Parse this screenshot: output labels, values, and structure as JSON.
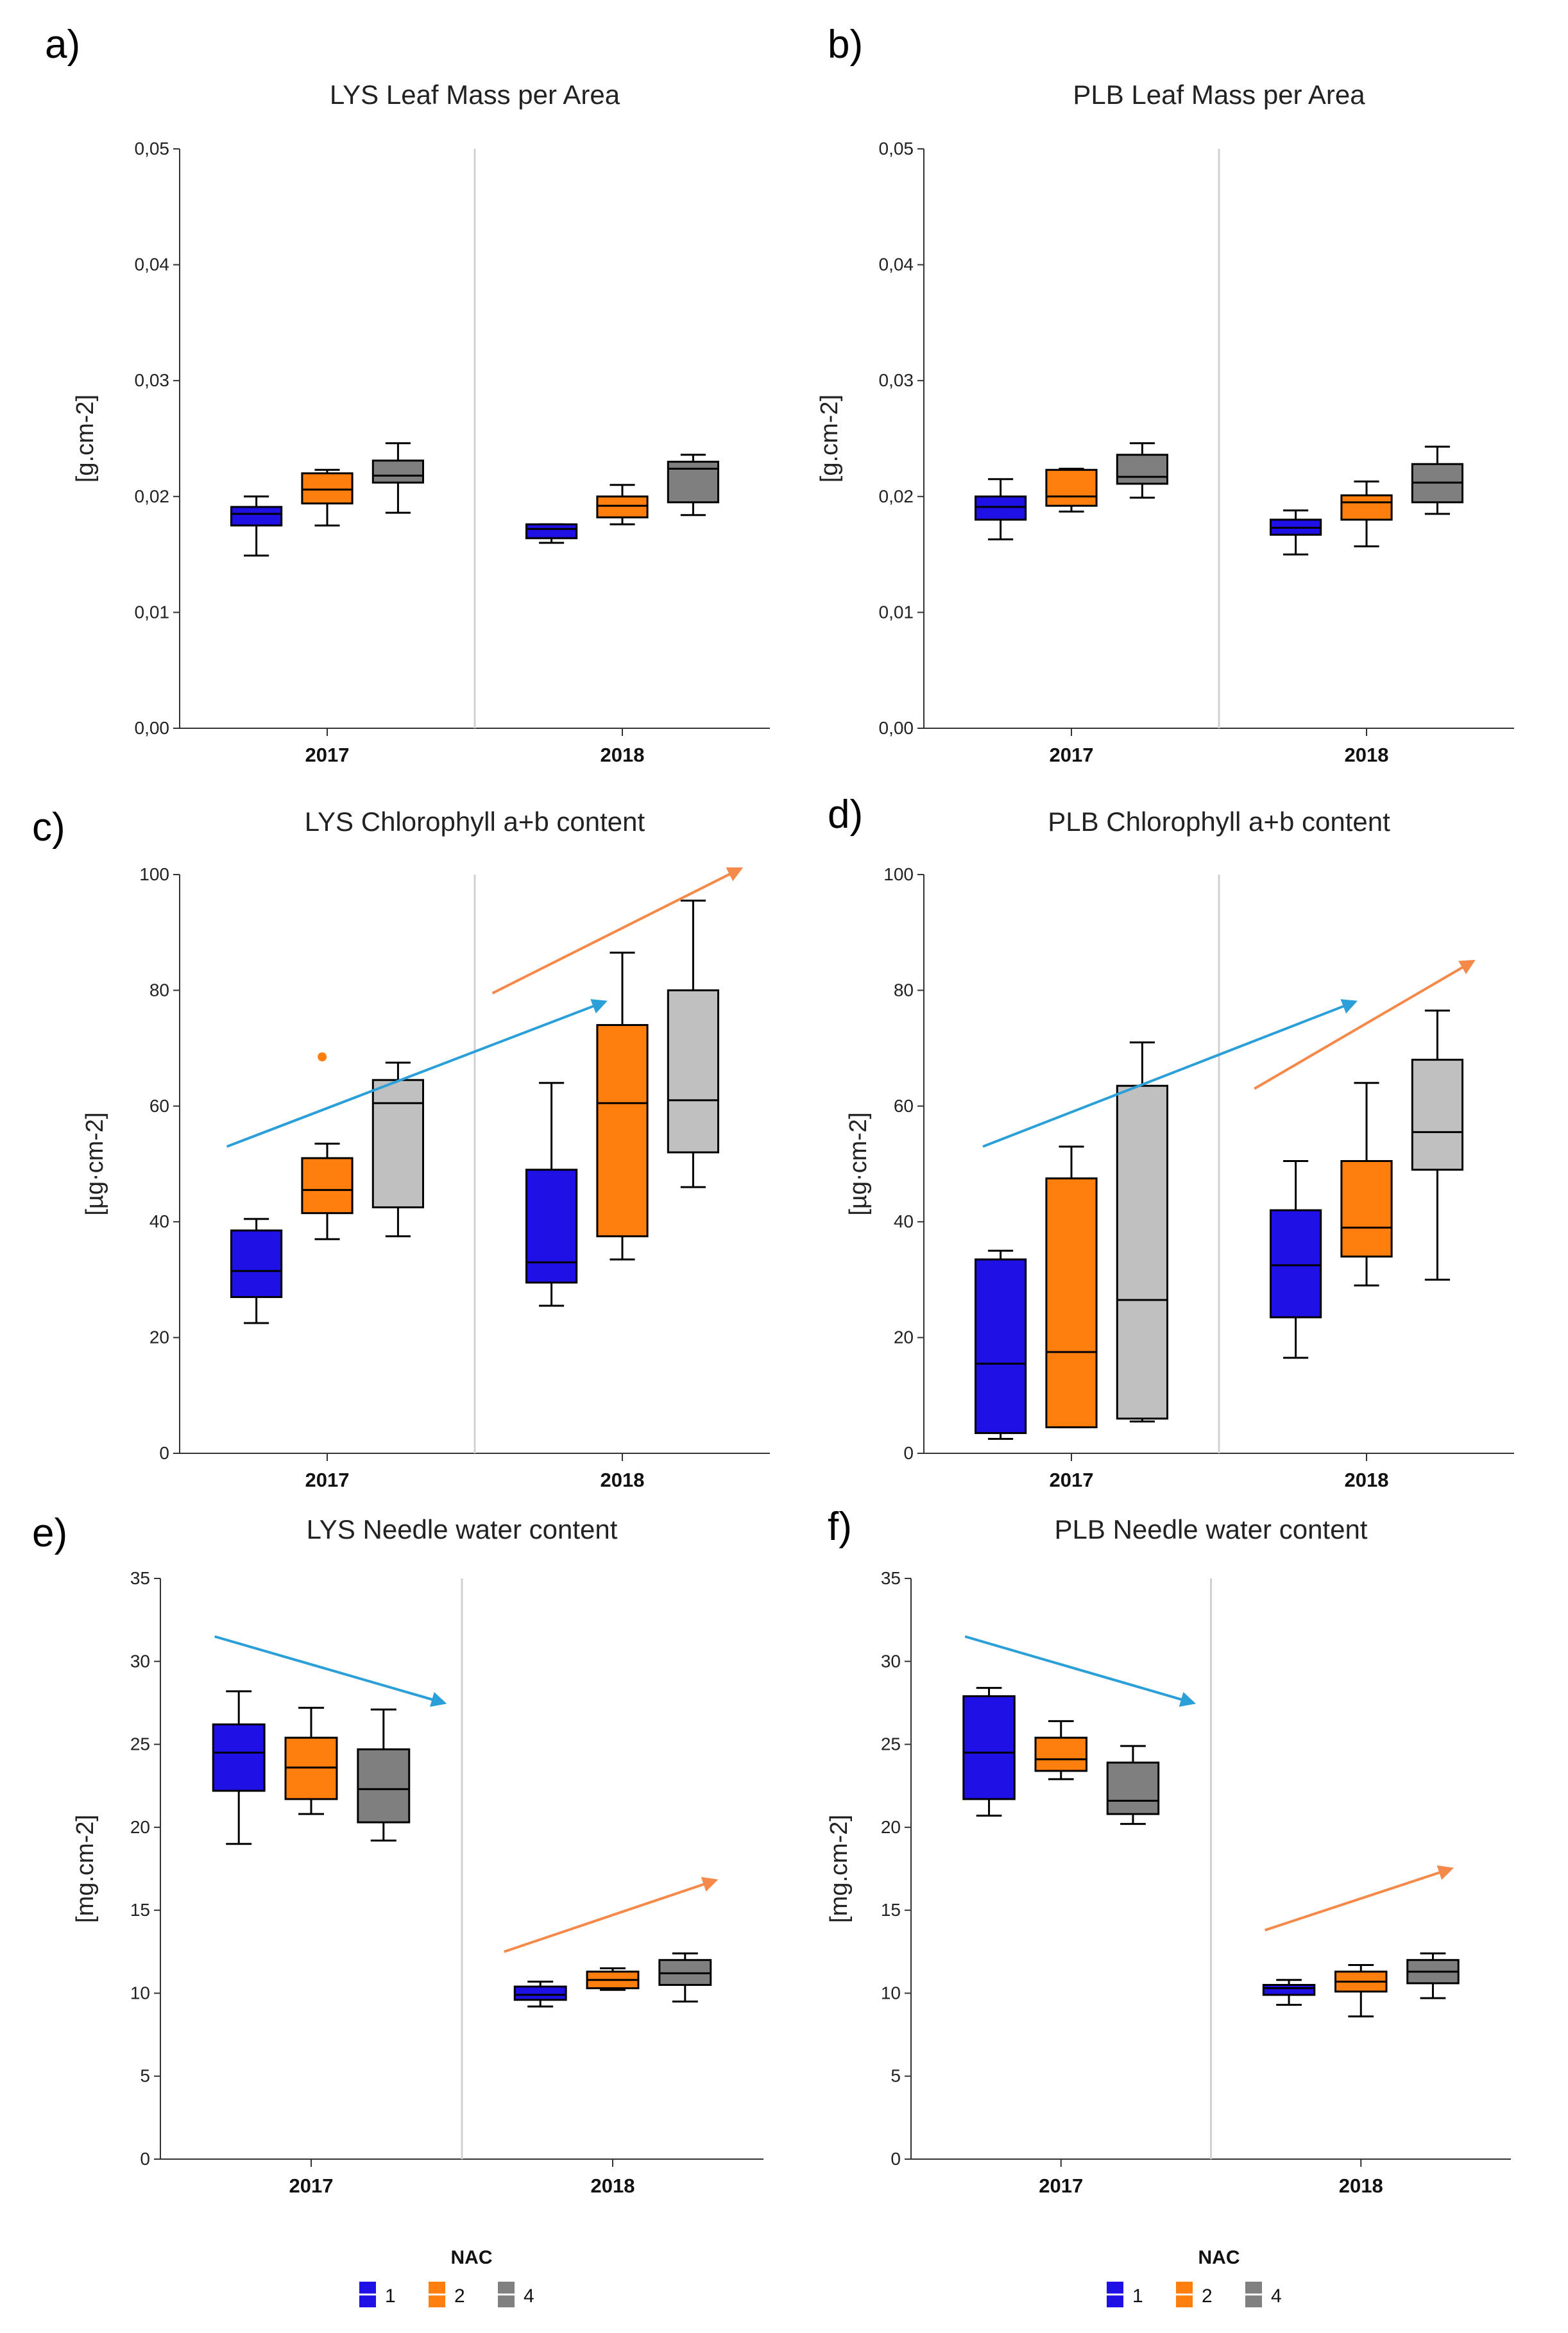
{
  "figure_title": "Six boxplot panels: leaf mass per area, chlorophyll a+b content and needle water content for LYS and PLB, 2017 and 2018",
  "legend": {
    "title": "NAC",
    "entries": [
      {
        "label": "1",
        "color": "#1f10e6"
      },
      {
        "label": "2",
        "color": "#ff7f0e"
      },
      {
        "label": "4",
        "color": "#808080"
      }
    ]
  },
  "chart_data": [
    {
      "id": "a",
      "letter": "a)",
      "type": "boxplot",
      "title": "LYS Leaf Mass per Area",
      "ylabel": "[g.cm-2]",
      "ylim": [
        0,
        0.05
      ],
      "yticks": [
        0,
        0.01,
        0.02,
        0.03,
        0.04,
        0.05
      ],
      "ytick_labels": [
        "0,00",
        "0,01",
        "0,02",
        "0,03",
        "0,04",
        "0,05"
      ],
      "categories": [
        "2017",
        "2018"
      ],
      "series": [
        {
          "name": "1",
          "color": "#1f10e6",
          "boxes": [
            {
              "min": 0.0149,
              "q1": 0.0175,
              "median": 0.0185,
              "q3": 0.0191,
              "max": 0.02
            },
            {
              "min": 0.016,
              "q1": 0.0164,
              "median": 0.0172,
              "q3": 0.0176,
              "max": 0.0176
            }
          ]
        },
        {
          "name": "2",
          "color": "#ff7f0e",
          "boxes": [
            {
              "min": 0.0175,
              "q1": 0.0194,
              "median": 0.0206,
              "q3": 0.022,
              "max": 0.0223
            },
            {
              "min": 0.0176,
              "q1": 0.0182,
              "median": 0.0192,
              "q3": 0.02,
              "max": 0.021
            }
          ]
        },
        {
          "name": "4",
          "color": "#7f7f7f",
          "boxes": [
            {
              "min": 0.0186,
              "q1": 0.0212,
              "median": 0.0218,
              "q3": 0.0231,
              "max": 0.0246
            },
            {
              "min": 0.0184,
              "q1": 0.0195,
              "median": 0.0224,
              "q3": 0.023,
              "max": 0.0236
            }
          ]
        }
      ],
      "arrows": []
    },
    {
      "id": "b",
      "letter": "b)",
      "type": "boxplot",
      "title": "PLB Leaf Mass per Area",
      "ylabel": "[g.cm-2]",
      "ylim": [
        0,
        0.05
      ],
      "yticks": [
        0,
        0.01,
        0.02,
        0.03,
        0.04,
        0.05
      ],
      "ytick_labels": [
        "0,00",
        "0,01",
        "0,02",
        "0,03",
        "0,04",
        "0,05"
      ],
      "categories": [
        "2017",
        "2018"
      ],
      "series": [
        {
          "name": "1",
          "color": "#1f10e6",
          "boxes": [
            {
              "min": 0.0163,
              "q1": 0.018,
              "median": 0.0191,
              "q3": 0.02,
              "max": 0.0215
            },
            {
              "min": 0.015,
              "q1": 0.0167,
              "median": 0.0173,
              "q3": 0.018,
              "max": 0.0188
            }
          ]
        },
        {
          "name": "2",
          "color": "#ff7f0e",
          "boxes": [
            {
              "min": 0.0187,
              "q1": 0.0192,
              "median": 0.02,
              "q3": 0.0223,
              "max": 0.0224
            },
            {
              "min": 0.0157,
              "q1": 0.018,
              "median": 0.0195,
              "q3": 0.0201,
              "max": 0.0213
            }
          ]
        },
        {
          "name": "4",
          "color": "#7f7f7f",
          "boxes": [
            {
              "min": 0.0199,
              "q1": 0.0211,
              "median": 0.0217,
              "q3": 0.0236,
              "max": 0.0246
            },
            {
              "min": 0.0185,
              "q1": 0.0195,
              "median": 0.0212,
              "q3": 0.0228,
              "max": 0.0243
            }
          ]
        }
      ],
      "arrows": []
    },
    {
      "id": "c",
      "letter": "c)",
      "type": "boxplot",
      "title": "LYS Chlorophyll a+b content",
      "ylabel": "[µg·cm-2]",
      "ylim": [
        0,
        100
      ],
      "yticks": [
        0,
        20,
        40,
        60,
        80,
        100
      ],
      "ytick_labels": [
        "0",
        "20",
        "40",
        "60",
        "80",
        "100"
      ],
      "categories": [
        "2017",
        "2018"
      ],
      "series": [
        {
          "name": "1",
          "color": "#1f10e6",
          "boxes": [
            {
              "min": 22.5,
              "q1": 27.0,
              "median": 31.5,
              "q3": 38.5,
              "max": 40.5
            },
            {
              "min": 25.5,
              "q1": 29.5,
              "median": 33.0,
              "q3": 49.0,
              "max": 64.0
            }
          ]
        },
        {
          "name": "2",
          "color": "#ff7f0e",
          "boxes": [
            {
              "min": 37.0,
              "q1": 41.5,
              "median": 45.5,
              "q3": 51.0,
              "max": 53.5,
              "outliers": [
                68.5
              ]
            },
            {
              "min": 33.5,
              "q1": 37.5,
              "median": 60.5,
              "q3": 74.0,
              "max": 86.5
            }
          ]
        },
        {
          "name": "4",
          "color": "#c0c0c0",
          "boxes": [
            {
              "min": 37.5,
              "q1": 42.5,
              "median": 60.5,
              "q3": 64.5,
              "max": 67.5
            },
            {
              "min": 46.0,
              "q1": 52.0,
              "median": 61.0,
              "q3": 80.0,
              "max": 95.5
            }
          ]
        }
      ],
      "arrows": [
        {
          "color": "#2a9fd8",
          "from": [
            0.08,
            53
          ],
          "to": [
            0.72,
            78
          ]
        },
        {
          "color": "#f5894a",
          "from": [
            0.53,
            79.5
          ],
          "to": [
            0.95,
            101
          ]
        }
      ]
    },
    {
      "id": "d",
      "letter": "d)",
      "type": "boxplot",
      "title": "PLB Chlorophyll a+b content",
      "ylabel": "[µg·cm-2]",
      "ylim": [
        0,
        100
      ],
      "yticks": [
        0,
        20,
        40,
        60,
        80,
        100
      ],
      "ytick_labels": [
        "0",
        "20",
        "40",
        "60",
        "80",
        "100"
      ],
      "categories": [
        "2017",
        "2018"
      ],
      "series": [
        {
          "name": "1",
          "color": "#1f10e6",
          "boxes": [
            {
              "min": 2.5,
              "q1": 3.5,
              "median": 15.5,
              "q3": 33.5,
              "max": 35.0
            },
            {
              "min": 16.5,
              "q1": 23.5,
              "median": 32.5,
              "q3": 42.0,
              "max": 50.5
            }
          ]
        },
        {
          "name": "2",
          "color": "#ff7f0e",
          "boxes": [
            {
              "min": 4.5,
              "q1": 4.5,
              "median": 17.5,
              "q3": 47.5,
              "max": 53.0
            },
            {
              "min": 29.0,
              "q1": 34.0,
              "median": 39.0,
              "q3": 50.5,
              "max": 64.0
            }
          ]
        },
        {
          "name": "4",
          "color": "#c0c0c0",
          "boxes": [
            {
              "min": 5.5,
              "q1": 6.0,
              "median": 26.5,
              "q3": 63.5,
              "max": 71.0
            },
            {
              "min": 30.0,
              "q1": 49.0,
              "median": 55.5,
              "q3": 68.0,
              "max": 76.5
            }
          ]
        }
      ],
      "arrows": [
        {
          "color": "#2a9fd8",
          "from": [
            0.1,
            53
          ],
          "to": [
            0.73,
            78
          ]
        },
        {
          "color": "#f5894a",
          "from": [
            0.56,
            63
          ],
          "to": [
            0.93,
            85
          ]
        }
      ]
    },
    {
      "id": "e",
      "letter": "e)",
      "type": "boxplot",
      "title": "LYS Needle water content",
      "ylabel": "[mg.cm-2]",
      "ylim": [
        0,
        35
      ],
      "yticks": [
        0,
        5,
        10,
        15,
        20,
        25,
        30,
        35
      ],
      "ytick_labels": [
        "0",
        "5",
        "10",
        "15",
        "20",
        "25",
        "30",
        "35"
      ],
      "categories": [
        "2017",
        "2018"
      ],
      "series": [
        {
          "name": "1",
          "color": "#1f10e6",
          "boxes": [
            {
              "min": 19.0,
              "q1": 22.2,
              "median": 24.5,
              "q3": 26.2,
              "max": 28.2
            },
            {
              "min": 9.2,
              "q1": 9.6,
              "median": 9.9,
              "q3": 10.4,
              "max": 10.7
            }
          ]
        },
        {
          "name": "2",
          "color": "#ff7f0e",
          "boxes": [
            {
              "min": 20.8,
              "q1": 21.7,
              "median": 23.6,
              "q3": 25.4,
              "max": 27.2
            },
            {
              "min": 10.2,
              "q1": 10.3,
              "median": 10.8,
              "q3": 11.3,
              "max": 11.5
            }
          ]
        },
        {
          "name": "4",
          "color": "#7f7f7f",
          "boxes": [
            {
              "min": 19.2,
              "q1": 20.3,
              "median": 22.3,
              "q3": 24.7,
              "max": 27.1
            },
            {
              "min": 9.5,
              "q1": 10.5,
              "median": 11.2,
              "q3": 12.0,
              "max": 12.4
            }
          ]
        }
      ],
      "arrows": [
        {
          "color": "#2a9fd8",
          "from": [
            0.09,
            31.5
          ],
          "to": [
            0.47,
            27.5
          ]
        },
        {
          "color": "#f5894a",
          "from": [
            0.57,
            12.5
          ],
          "to": [
            0.92,
            16.8
          ]
        }
      ]
    },
    {
      "id": "f",
      "letter": "f)",
      "type": "boxplot",
      "title": "PLB Needle water content",
      "ylabel": "[mg.cm-2]",
      "ylim": [
        0,
        35
      ],
      "yticks": [
        0,
        5,
        10,
        15,
        20,
        25,
        30,
        35
      ],
      "ytick_labels": [
        "0",
        "5",
        "10",
        "15",
        "20",
        "25",
        "30",
        "35"
      ],
      "categories": [
        "2017",
        "2018"
      ],
      "series": [
        {
          "name": "1",
          "color": "#1f10e6",
          "boxes": [
            {
              "min": 20.7,
              "q1": 21.7,
              "median": 24.5,
              "q3": 27.9,
              "max": 28.4
            },
            {
              "min": 9.3,
              "q1": 9.9,
              "median": 10.3,
              "q3": 10.5,
              "max": 10.8
            }
          ]
        },
        {
          "name": "2",
          "color": "#ff7f0e",
          "boxes": [
            {
              "min": 22.9,
              "q1": 23.4,
              "median": 24.1,
              "q3": 25.4,
              "max": 26.4
            },
            {
              "min": 8.6,
              "q1": 10.1,
              "median": 10.7,
              "q3": 11.3,
              "max": 11.7
            }
          ]
        },
        {
          "name": "4",
          "color": "#7f7f7f",
          "boxes": [
            {
              "min": 20.2,
              "q1": 20.8,
              "median": 21.6,
              "q3": 23.9,
              "max": 24.9
            },
            {
              "min": 9.7,
              "q1": 10.6,
              "median": 11.3,
              "q3": 12.0,
              "max": 12.4
            }
          ]
        }
      ],
      "arrows": [
        {
          "color": "#2a9fd8",
          "from": [
            0.09,
            31.5
          ],
          "to": [
            0.47,
            27.5
          ]
        },
        {
          "color": "#f5894a",
          "from": [
            0.59,
            13.8
          ],
          "to": [
            0.9,
            17.5
          ]
        }
      ]
    }
  ]
}
